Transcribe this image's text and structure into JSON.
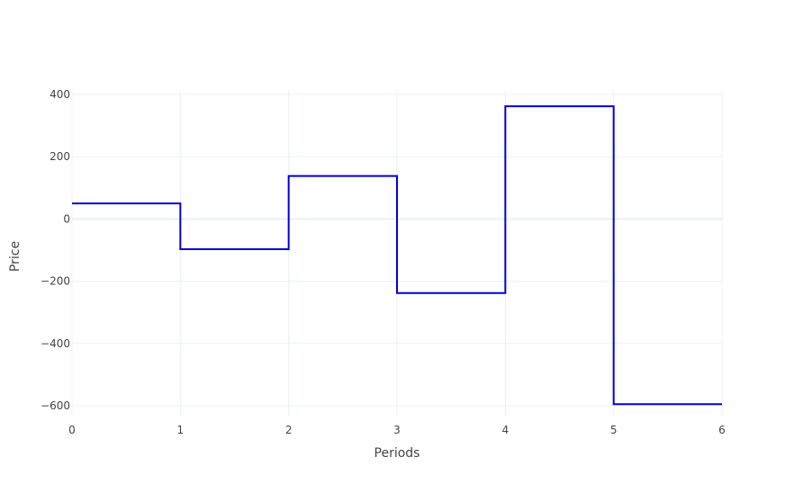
{
  "chart_data": {
    "type": "line",
    "line_shape": "step-post",
    "title": "",
    "xlabel": "Periods",
    "ylabel": "Price",
    "xlim": [
      0,
      6
    ],
    "ylim": [
      -620,
      420
    ],
    "x_ticks": [
      0,
      1,
      2,
      3,
      4,
      5,
      6
    ],
    "y_ticks": [
      -600,
      -400,
      -200,
      0,
      200,
      400
    ],
    "grid": true,
    "legend": "none",
    "series": [
      {
        "color": "#0000dd",
        "x": [
          0,
          1,
          2,
          3,
          4,
          5,
          6
        ],
        "y": [
          50,
          -97,
          138,
          -238,
          362,
          -595,
          -595
        ]
      }
    ]
  }
}
